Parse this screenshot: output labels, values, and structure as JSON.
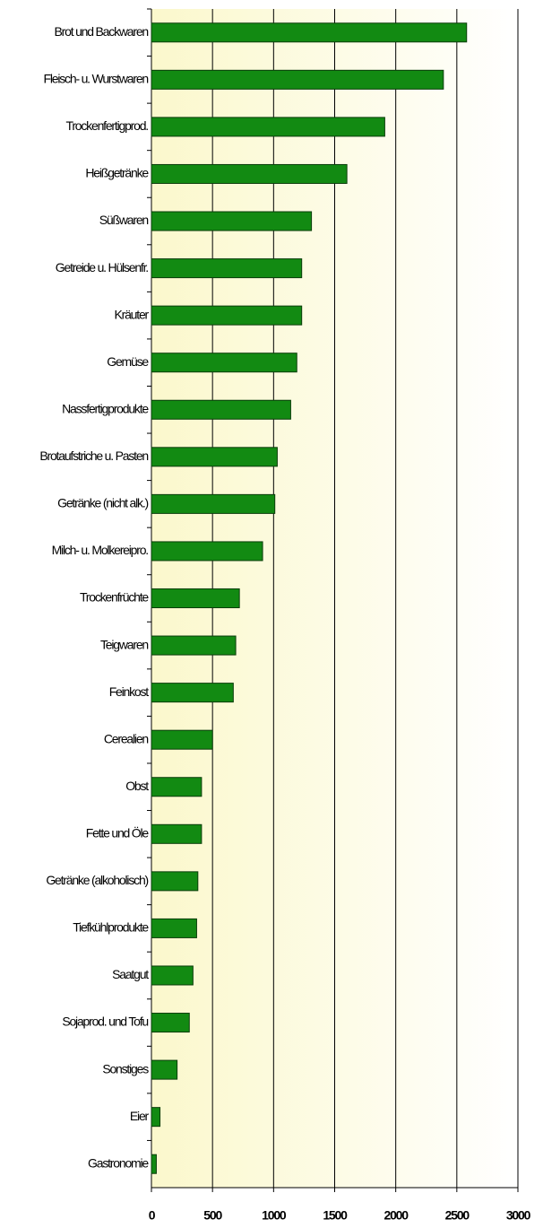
{
  "chart_data": {
    "type": "barh",
    "categories": [
      "Brot und Backwaren",
      "Fleisch- u. Wurstwaren",
      "Trockenfertigprod.",
      "Heißgetränke",
      "Süßwaren",
      "Getreide u. Hülsenfr.",
      "Kräuter",
      "Gemüse",
      "Nassfertigprodukte",
      "Brotaufstriche u. Pasten",
      "Getränke (nicht alk.)",
      "Milch- u. Molkereipro.",
      "Trockenfrüchte",
      "Teigwaren",
      "Feinkost",
      "Cerealien",
      "Obst",
      "Fette und Öle",
      "Getränke (alkoholisch)",
      "Tiefkühlprodukte",
      "Saatgut",
      "Sojaprod. und Tofu",
      "Sonstiges",
      "Eier",
      "Gastronomie"
    ],
    "values": [
      2580,
      2390,
      1910,
      1600,
      1310,
      1230,
      1230,
      1190,
      1140,
      1030,
      1010,
      910,
      720,
      690,
      670,
      500,
      410,
      410,
      380,
      370,
      340,
      310,
      210,
      70,
      40
    ],
    "color": "#128a12",
    "xlim": [
      0,
      3000
    ],
    "xticks": [
      0,
      500,
      1000,
      1500,
      2000,
      2500,
      3000
    ],
    "grid": true
  }
}
